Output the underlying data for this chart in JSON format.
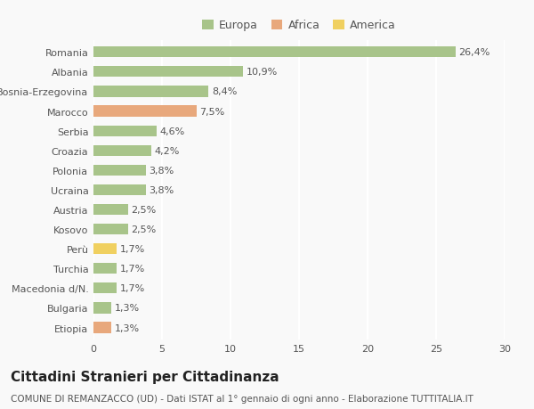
{
  "categories": [
    "Romania",
    "Albania",
    "Bosnia-Erzegovina",
    "Marocco",
    "Serbia",
    "Croazia",
    "Polonia",
    "Ucraina",
    "Austria",
    "Kosovo",
    "Perù",
    "Turchia",
    "Macedonia d/N.",
    "Bulgaria",
    "Etiopia"
  ],
  "values": [
    26.4,
    10.9,
    8.4,
    7.5,
    4.6,
    4.2,
    3.8,
    3.8,
    2.5,
    2.5,
    1.7,
    1.7,
    1.7,
    1.3,
    1.3
  ],
  "labels": [
    "26,4%",
    "10,9%",
    "8,4%",
    "7,5%",
    "4,6%",
    "4,2%",
    "3,8%",
    "3,8%",
    "2,5%",
    "2,5%",
    "1,7%",
    "1,7%",
    "1,7%",
    "1,3%",
    "1,3%"
  ],
  "continent": [
    "Europa",
    "Europa",
    "Europa",
    "Africa",
    "Europa",
    "Europa",
    "Europa",
    "Europa",
    "Europa",
    "Europa",
    "America",
    "Europa",
    "Europa",
    "Europa",
    "Africa"
  ],
  "colors": {
    "Europa": "#a8c48a",
    "Africa": "#e8a87c",
    "America": "#f0d060"
  },
  "title": "Cittadini Stranieri per Cittadinanza",
  "subtitle": "COMUNE DI REMANZACCO (UD) - Dati ISTAT al 1° gennaio di ogni anno - Elaborazione TUTTITALIA.IT",
  "background_color": "#f9f9f9",
  "grid_color": "#ffffff",
  "xlim": [
    0,
    30
  ],
  "xticks": [
    0,
    5,
    10,
    15,
    20,
    25,
    30
  ],
  "title_fontsize": 11,
  "subtitle_fontsize": 7.5,
  "label_fontsize": 8,
  "tick_fontsize": 8,
  "bar_height": 0.55,
  "legend_marker_size": 12
}
